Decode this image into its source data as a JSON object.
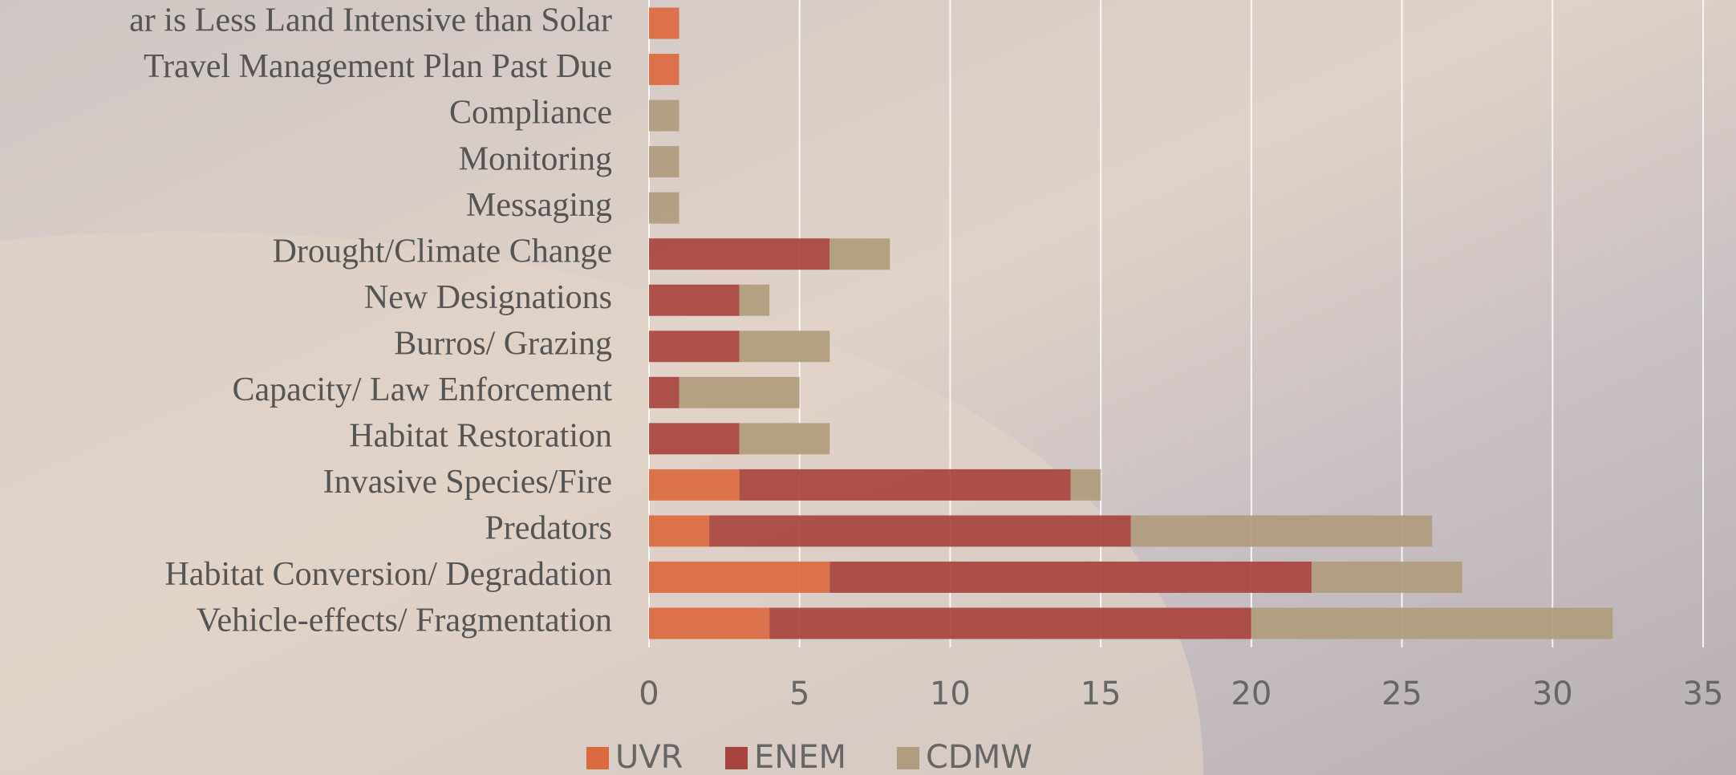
{
  "chart_data": {
    "type": "stacked-barh",
    "categories": [
      "ar is Less Land Intensive than Solar",
      "Travel Management Plan Past Due",
      "Compliance",
      "Monitoring",
      "Messaging",
      "Drought/Climate Change",
      "New Designations",
      "Burros/ Grazing",
      "Capacity/ Law Enforcement",
      "Habitat Restoration",
      "Invasive Species/Fire",
      "Predators",
      "Habitat Conversion/ Degradation",
      "Vehicle-effects/ Fragmentation"
    ],
    "series": [
      {
        "name": "UVR",
        "color": "#db6a40",
        "values": [
          1,
          1,
          0,
          0,
          0,
          0,
          0,
          0,
          0,
          0,
          3,
          2,
          6,
          4
        ]
      },
      {
        "name": "ENEM",
        "color": "#a8443e",
        "values": [
          0,
          0,
          0,
          0,
          0,
          6,
          3,
          3,
          1,
          3,
          11,
          14,
          16,
          16
        ]
      },
      {
        "name": "CDMW",
        "color": "#b09c7e",
        "values": [
          0,
          0,
          1,
          1,
          1,
          2,
          1,
          3,
          4,
          3,
          1,
          10,
          5,
          12
        ]
      }
    ],
    "xlim": [
      0,
      35
    ],
    "xticks": [
      0,
      5,
      10,
      15,
      20,
      25,
      30,
      35
    ],
    "grid": true,
    "legend": "bottom"
  }
}
